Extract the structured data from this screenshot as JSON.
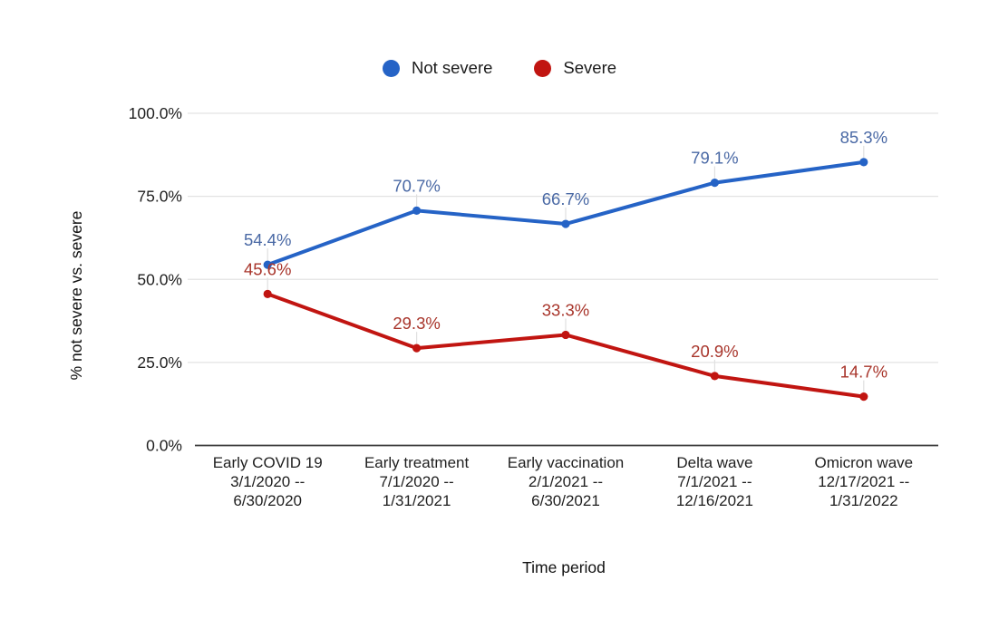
{
  "chart_data": {
    "type": "line",
    "title": "",
    "legend_position": "top",
    "xlabel": "Time period",
    "ylabel": "% not severe vs. severe",
    "ylim": [
      0,
      100
    ],
    "grid": true,
    "yticks": [
      {
        "value": 0,
        "label": "0.0%"
      },
      {
        "value": 25,
        "label": "25.0%"
      },
      {
        "value": 50,
        "label": "50.0%"
      },
      {
        "value": 75,
        "label": "75.0%"
      },
      {
        "value": 100,
        "label": "100.0%"
      }
    ],
    "categories": [
      {
        "lines": [
          "Early COVID 19",
          "3/1/2020 --",
          "6/30/2020"
        ]
      },
      {
        "lines": [
          "Early treatment",
          "7/1/2020 --",
          "1/31/2021"
        ]
      },
      {
        "lines": [
          "Early vaccination",
          "2/1/2021 --",
          "6/30/2021"
        ]
      },
      {
        "lines": [
          "Delta wave",
          "7/1/2021 --",
          "12/16/2021"
        ]
      },
      {
        "lines": [
          "Omicron wave",
          "12/17/2021 --",
          "1/31/2022"
        ]
      }
    ],
    "series": [
      {
        "name": "Not severe",
        "color": "#2563c6",
        "label_color": "#4a69a5",
        "values": [
          54.4,
          70.7,
          66.7,
          79.1,
          85.3
        ],
        "labels": [
          "54.4%",
          "70.7%",
          "66.7%",
          "79.1%",
          "85.3%"
        ]
      },
      {
        "name": "Severe",
        "color": "#c11511",
        "label_color": "#a8352b",
        "values": [
          45.6,
          29.3,
          33.3,
          20.9,
          14.7
        ],
        "labels": [
          "45.6%",
          "29.3%",
          "33.3%",
          "20.9%",
          "14.7%"
        ]
      }
    ]
  },
  "colors": {
    "grid": "#e3e3e3",
    "baseline": "#3a3a3a",
    "leader": "#e0e0e0"
  }
}
